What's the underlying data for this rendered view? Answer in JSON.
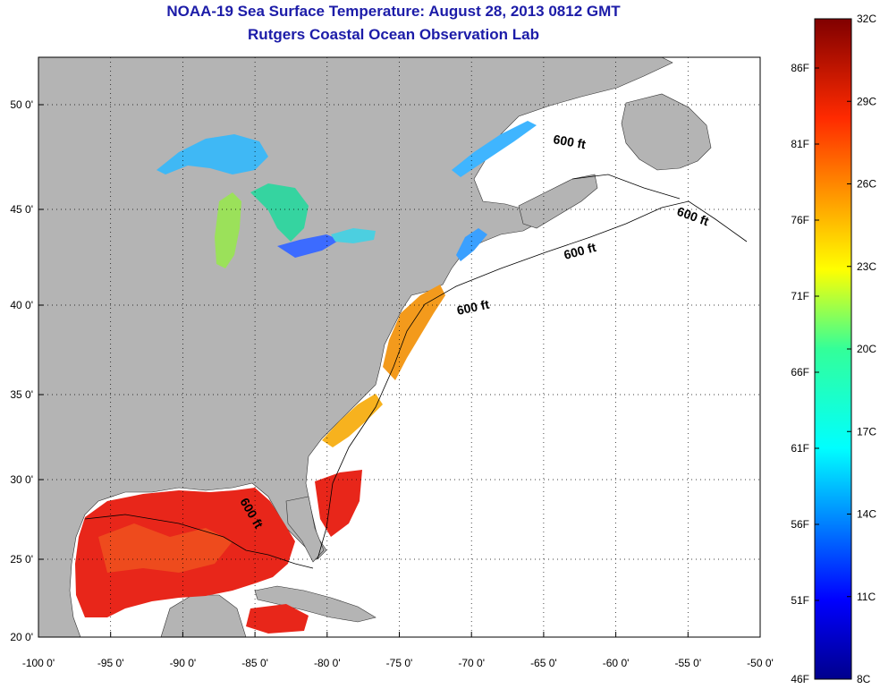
{
  "header": {
    "title": "NOAA-19 Sea Surface Temperature:  August 28, 2013 0812 GMT",
    "subtitle": "Rutgers Coastal Ocean Observation Lab"
  },
  "map": {
    "lon_range": [
      -100,
      -50
    ],
    "lat_range": [
      20,
      52
    ],
    "lon_ticks": [
      "-100 0'",
      "-95 0'",
      "-90 0'",
      "-85 0'",
      "-80 0'",
      "-75 0'",
      "-70 0'",
      "-65 0'",
      "-60 0'",
      "-55 0'",
      "-50 0'"
    ],
    "lat_ticks": [
      "20 0'",
      "25 0'",
      "30 0'",
      "35 0'",
      "40 0'",
      "45 0'",
      "50 0'"
    ],
    "grid": true,
    "depth_labels": [
      "600 ft",
      "600 ft",
      "600 ft",
      "600 ft",
      "600 ft"
    ],
    "colors": {
      "land": "#b4b4b4",
      "ocean": "#ffffff"
    }
  },
  "colorbar": {
    "celsius_labels": [
      "32C",
      "29C",
      "26C",
      "23C",
      "20C",
      "17C",
      "14C",
      "11C",
      "8C"
    ],
    "fahrenheit_labels": [
      "86F",
      "81F",
      "76F",
      "71F",
      "66F",
      "61F",
      "56F",
      "51F",
      "46F"
    ]
  }
}
